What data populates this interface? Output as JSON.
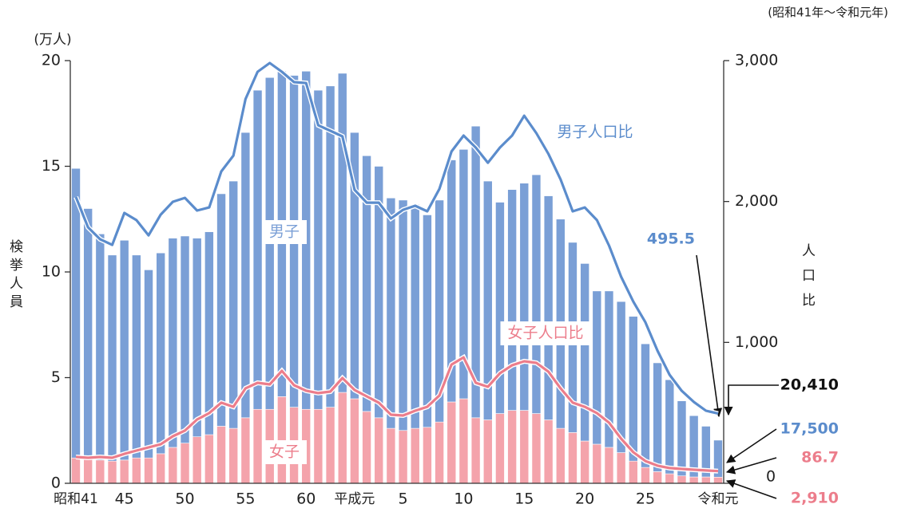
{
  "chart_data": {
    "type": "bar",
    "title": "(昭和41年〜令和元年)",
    "y_unit": "(万人)",
    "y_label": "検挙人員",
    "y2_label": "人口比",
    "categories": [
      "昭和41",
      null,
      null,
      null,
      "45",
      null,
      null,
      null,
      null,
      "50",
      null,
      null,
      null,
      null,
      "55",
      null,
      null,
      null,
      null,
      "60",
      null,
      null,
      null,
      "平成元",
      null,
      null,
      null,
      "5",
      null,
      null,
      null,
      null,
      "10",
      null,
      null,
      null,
      null,
      "15",
      null,
      null,
      null,
      null,
      "20",
      null,
      null,
      null,
      null,
      "25",
      null,
      null,
      null,
      null,
      null,
      "令和元"
    ],
    "ylim": [
      0,
      20
    ],
    "yticks": [
      0,
      5,
      10,
      15,
      20
    ],
    "y2lim": [
      0,
      3000
    ],
    "y2ticks": [
      0,
      {
        "value": 1000,
        "label": "1,000"
      },
      {
        "value": 2000,
        "label": "2,000"
      },
      {
        "value": 3000,
        "label": "3,000"
      }
    ],
    "series": [
      {
        "name": "女子",
        "type": "bar",
        "color": "#f4a3ab",
        "values": [
          1.2,
          1.15,
          1.1,
          1.05,
          1.1,
          1.2,
          1.2,
          1.4,
          1.7,
          1.9,
          2.2,
          2.3,
          2.7,
          2.6,
          3.1,
          3.5,
          3.5,
          4.1,
          3.6,
          3.5,
          3.5,
          3.6,
          4.3,
          4.0,
          3.4,
          3.1,
          2.6,
          2.5,
          2.6,
          2.65,
          2.9,
          3.85,
          4.0,
          3.1,
          3.0,
          3.3,
          3.45,
          3.45,
          3.3,
          3.0,
          2.6,
          2.4,
          2.0,
          1.85,
          1.7,
          1.45,
          1.05,
          0.75,
          0.55,
          0.45,
          0.35,
          0.3,
          0.3,
          0.291
        ]
      },
      {
        "name": "男子",
        "type": "bar",
        "color": "#7a9fd6",
        "values": [
          13.7,
          11.85,
          10.7,
          9.75,
          10.4,
          9.6,
          8.9,
          9.5,
          9.9,
          9.8,
          9.4,
          9.6,
          11.0,
          11.7,
          13.5,
          15.1,
          15.7,
          15.4,
          15.7,
          16.0,
          15.1,
          15.2,
          15.1,
          12.6,
          12.1,
          11.9,
          10.9,
          10.9,
          10.6,
          10.05,
          10.5,
          11.45,
          11.8,
          13.8,
          11.3,
          10.0,
          10.45,
          10.75,
          11.3,
          10.6,
          9.9,
          9.0,
          8.4,
          7.25,
          7.4,
          7.15,
          6.85,
          5.85,
          5.15,
          4.45,
          3.55,
          2.9,
          2.4,
          1.75
        ]
      },
      {
        "name": "男子人口比",
        "type": "line",
        "axis": "y2",
        "color": "#5b8ccc",
        "values": [
          2032,
          1817,
          1732,
          1692,
          1919,
          1868,
          1760,
          1907,
          1998,
          2026,
          1936,
          1958,
          2213,
          2326,
          2728,
          2921,
          2983,
          2921,
          2847,
          2841,
          2541,
          2502,
          2462,
          2083,
          1992,
          1992,
          1879,
          1941,
          1970,
          1930,
          2089,
          2355,
          2468,
          2383,
          2275,
          2383,
          2468,
          2609,
          2485,
          2338,
          2157,
          1930,
          1958,
          1868,
          1687,
          1466,
          1290,
          1143,
          940,
          770,
          656,
          577,
          515,
          495.5
        ]
      },
      {
        "name": "女子人口比",
        "type": "line",
        "axis": "y2",
        "color": "#ec7d8b",
        "values": [
          187,
          181,
          187,
          181,
          209,
          232,
          255,
          277,
          334,
          374,
          453,
          498,
          572,
          543,
          674,
          713,
          702,
          798,
          696,
          657,
          640,
          651,
          747,
          662,
          617,
          572,
          487,
          481,
          515,
          543,
          623,
          843,
          894,
          713,
          685,
          781,
          838,
          866,
          855,
          792,
          674,
          572,
          543,
          498,
          430,
          317,
          221,
          158,
          125,
          108,
          102,
          96,
          91,
          86.7
        ]
      }
    ],
    "annotations": [
      "495.5",
      "20,410",
      "17,500",
      "86.7",
      "2,910"
    ]
  }
}
